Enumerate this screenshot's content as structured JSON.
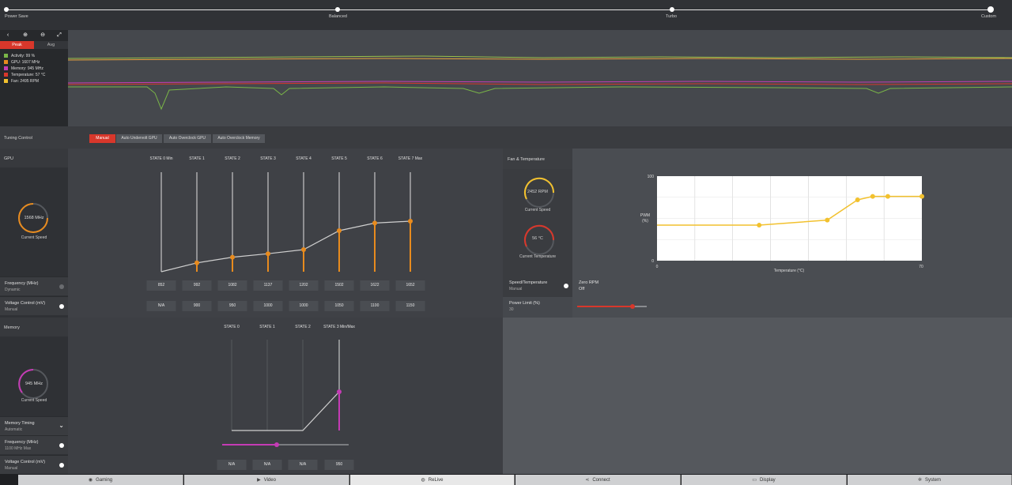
{
  "presets": {
    "items": [
      "Power Save",
      "Balanced",
      "Turbo",
      "Custom"
    ]
  },
  "metrics": {
    "peak_label": "Peak",
    "avg_label": "Avg",
    "rows": [
      {
        "label": "Activity: 99 %",
        "color": "#7ab648"
      },
      {
        "label": "GPU: 1607 MHz",
        "color": "#e88b1e"
      },
      {
        "label": "Memory: 945 MHz",
        "color": "#c53bb5"
      },
      {
        "label": "Temperature: 57 °C",
        "color": "#d8372b"
      },
      {
        "label": "Fan: 2495 RPM",
        "color": "#f2c12e"
      }
    ]
  },
  "tuning": {
    "label": "Tuning Control",
    "buttons": [
      "Manual",
      "Auto Undervolt GPU",
      "Auto Overclock GPU",
      "Auto Overclock Memory"
    ]
  },
  "gpu": {
    "section_label": "GPU",
    "gauge_value": "1568 MHz",
    "gauge_caption": "Current Speed",
    "frequency_title": "Frequency (MHz)",
    "frequency_sub": "Dynamic",
    "voltage_title": "Voltage Control (mV)",
    "voltage_sub": "Manual",
    "states": [
      "STATE 0 Min",
      "STATE 1",
      "STATE 2",
      "STATE 3",
      "STATE 4",
      "STATE 5",
      "STATE 6",
      "STATE 7 Max"
    ],
    "frequencies": [
      "852",
      "992",
      "1082",
      "1137",
      "1202",
      "1502",
      "1622",
      "1652"
    ],
    "voltages": [
      "N/A",
      "900",
      "950",
      "1000",
      "1000",
      "1050",
      "1100",
      "1150"
    ]
  },
  "memory": {
    "section_label": "Memory",
    "gauge_value": "945 MHz",
    "gauge_caption": "Current Speed",
    "timing_title": "Memory Timing",
    "timing_sub": "Automatic",
    "frequency_title": "Frequency (MHz)",
    "frequency_sub": "1100 MHz Max",
    "voltage_title": "Voltage Control (mV)",
    "voltage_sub": "Manual",
    "states": [
      "STATE 0",
      "STATE 1",
      "STATE 2",
      "STATE 3 Min/Max"
    ],
    "voltages": [
      "N/A",
      "N/A",
      "N/A",
      "950"
    ]
  },
  "fan": {
    "header": "Fan & Temperature",
    "speed_value": "2452 RPM",
    "speed_caption": "Current Speed",
    "temp_value": "56 °C",
    "temp_caption": "Current Temperature",
    "speed_temp_title": "Speed/Temperature",
    "speed_temp_sub": "Manual",
    "power_limit_title": "Power Limit (%)",
    "power_limit_value": "30",
    "zero_rpm_title": "Zero RPM",
    "zero_rpm_value": "Off",
    "power_limit_level": 0.8
  },
  "chart_data": {
    "type": "line",
    "title": "",
    "xlabel": "Temperature (°C)",
    "ylabel": "PWM\n(%)",
    "xlim": [
      0,
      70
    ],
    "ylim": [
      0,
      100
    ],
    "x_ticks": [
      "0",
      "70"
    ],
    "y_ticks": [
      "0",
      "100"
    ],
    "series": [
      {
        "x": [
          0,
          27,
          45,
          53,
          57,
          61,
          70
        ],
        "y": [
          42,
          42,
          48,
          72,
          76,
          76,
          76
        ]
      }
    ]
  },
  "nav": {
    "tabs": [
      {
        "label": "Gaming",
        "icon": "gamepad-icon",
        "glyph": "◉"
      },
      {
        "label": "Video",
        "icon": "play-icon",
        "glyph": "▶"
      },
      {
        "label": "ReLive",
        "icon": "relive-icon",
        "glyph": "◍"
      },
      {
        "label": "Connect",
        "icon": "share-icon",
        "glyph": "⋖"
      },
      {
        "label": "Display",
        "icon": "monitor-icon",
        "glyph": "▭"
      },
      {
        "label": "System",
        "icon": "gear-icon",
        "glyph": "✲"
      }
    ]
  }
}
